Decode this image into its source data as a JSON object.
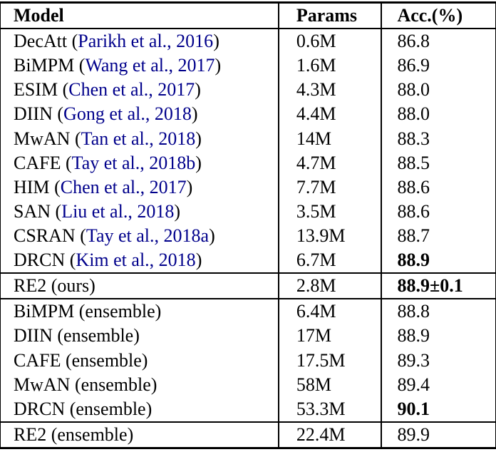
{
  "table": {
    "title": "model-comparison-results",
    "colors": {
      "citation": "#00008B",
      "text": "#000000",
      "border": "#000000",
      "background": "#ffffff"
    },
    "headers": {
      "model": "Model",
      "params": "Params",
      "acc": "Acc.(%)"
    },
    "rows": [
      {
        "name": "DecAtt",
        "cite": "Parikh et al., 2016",
        "params": "0.6M",
        "acc": "86.8",
        "acc_bold": false,
        "group_start": false
      },
      {
        "name": "BiMPM",
        "cite": "Wang et al., 2017",
        "params": "1.6M",
        "acc": "86.9",
        "acc_bold": false,
        "group_start": false
      },
      {
        "name": "ESIM",
        "cite": "Chen et al., 2017",
        "params": "4.3M",
        "acc": "88.0",
        "acc_bold": false,
        "group_start": false
      },
      {
        "name": "DIIN",
        "cite": "Gong et al., 2018",
        "params": "4.4M",
        "acc": "88.0",
        "acc_bold": false,
        "group_start": false
      },
      {
        "name": "MwAN",
        "cite": "Tan et al., 2018",
        "params": "14M",
        "acc": "88.3",
        "acc_bold": false,
        "group_start": false
      },
      {
        "name": "CAFE",
        "cite": "Tay et al., 2018b",
        "params": "4.7M",
        "acc": "88.5",
        "acc_bold": false,
        "group_start": false
      },
      {
        "name": "HIM",
        "cite": "Chen et al., 2017",
        "params": "7.7M",
        "acc": "88.6",
        "acc_bold": false,
        "group_start": false
      },
      {
        "name": "SAN",
        "cite": "Liu et al., 2018",
        "params": "3.5M",
        "acc": "88.6",
        "acc_bold": false,
        "group_start": false
      },
      {
        "name": "CSRAN",
        "cite": "Tay et al., 2018a",
        "params": "13.9M",
        "acc": "88.7",
        "acc_bold": false,
        "group_start": false
      },
      {
        "name": "DRCN",
        "cite": "Kim et al., 2018",
        "params": "6.7M",
        "acc": "88.9",
        "acc_bold": true,
        "group_start": false
      },
      {
        "name": "RE2 (ours)",
        "cite": null,
        "params": "2.8M",
        "acc": "88.9±0.1",
        "acc_bold": true,
        "group_start": true
      },
      {
        "name": "BiMPM (ensemble)",
        "cite": null,
        "params": "6.4M",
        "acc": "88.8",
        "acc_bold": false,
        "group_start": true
      },
      {
        "name": "DIIN (ensemble)",
        "cite": null,
        "params": "17M",
        "acc": "88.9",
        "acc_bold": false,
        "group_start": false
      },
      {
        "name": "CAFE (ensemble)",
        "cite": null,
        "params": "17.5M",
        "acc": "89.3",
        "acc_bold": false,
        "group_start": false
      },
      {
        "name": "MwAN (ensemble)",
        "cite": null,
        "params": "58M",
        "acc": "89.4",
        "acc_bold": false,
        "group_start": false
      },
      {
        "name": "DRCN (ensemble)",
        "cite": null,
        "params": "53.3M",
        "acc": "90.1",
        "acc_bold": true,
        "group_start": false
      },
      {
        "name": "RE2 (ensemble)",
        "cite": null,
        "params": "22.4M",
        "acc": "89.9",
        "acc_bold": false,
        "group_start": true
      }
    ]
  }
}
